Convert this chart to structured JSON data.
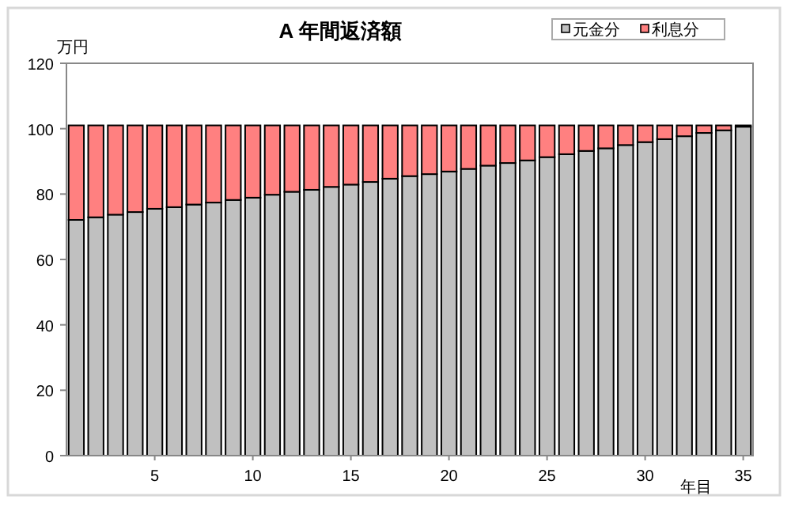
{
  "chart_data": {
    "type": "bar",
    "stacked": true,
    "title": "A 年間返済額",
    "ylabel": "万円",
    "xlabel": "年目",
    "categories": [
      null,
      null,
      null,
      null,
      "5",
      null,
      null,
      null,
      null,
      "10",
      null,
      null,
      null,
      null,
      "15",
      null,
      null,
      null,
      null,
      "20",
      null,
      null,
      null,
      null,
      "25",
      null,
      null,
      null,
      null,
      "30",
      null,
      null,
      null,
      null,
      "35"
    ],
    "series": [
      {
        "name": "元金分",
        "color": "#c0c0c0",
        "values": [
          72.1,
          72.9,
          73.7,
          74.5,
          75.5,
          76.0,
          76.8,
          77.4,
          78.2,
          78.9,
          79.8,
          80.7,
          81.3,
          82.2,
          82.9,
          83.7,
          84.7,
          85.5,
          86.1,
          86.9,
          87.7,
          88.7,
          89.5,
          90.3,
          91.3,
          92.2,
          93.2,
          94.0,
          95.0,
          95.9,
          96.8,
          97.7,
          98.7,
          99.5,
          100.6
        ]
      },
      {
        "name": "利息分",
        "color": "#ff8080",
        "values": [
          28.9,
          28.1,
          27.3,
          26.5,
          25.5,
          25.0,
          24.2,
          23.6,
          22.8,
          22.1,
          21.2,
          20.3,
          19.7,
          18.8,
          18.1,
          17.3,
          16.3,
          15.5,
          14.9,
          14.1,
          13.3,
          12.3,
          11.5,
          10.7,
          9.7,
          8.8,
          7.8,
          7.0,
          6.0,
          5.1,
          4.2,
          3.3,
          2.3,
          1.5,
          0.4
        ]
      }
    ],
    "ylim": [
      0,
      120
    ],
    "yticks": [
      0,
      20,
      40,
      60,
      80,
      100,
      120
    ],
    "grid": false,
    "legend": "top right"
  }
}
